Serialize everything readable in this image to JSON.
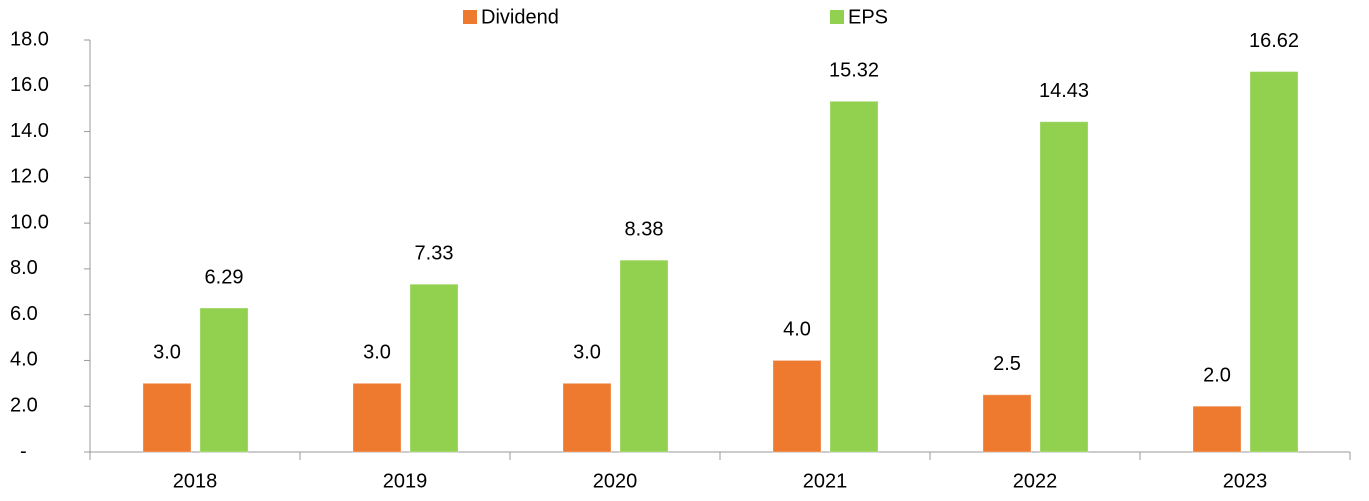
{
  "chart_data": {
    "type": "bar",
    "categories": [
      "2018",
      "2019",
      "2020",
      "2021",
      "2022",
      "2023"
    ],
    "series": [
      {
        "name": "Dividend",
        "color": "#ee7a30",
        "values": [
          3.0,
          3.0,
          3.0,
          4.0,
          2.5,
          2.0
        ],
        "value_labels": [
          "3.0",
          "3.0",
          "3.0",
          "4.0",
          "2.5",
          "2.0"
        ]
      },
      {
        "name": "EPS",
        "color": "#92d050",
        "values": [
          6.29,
          7.33,
          8.38,
          15.32,
          14.43,
          16.62
        ]
      }
    ],
    "ylim": [
      0,
      18
    ],
    "yticks": [
      {
        "value": 0,
        "label": "-"
      },
      {
        "value": 2,
        "label": "2.0"
      },
      {
        "value": 4,
        "label": "4.0"
      },
      {
        "value": 6,
        "label": "6.0"
      },
      {
        "value": 8,
        "label": "8.0"
      },
      {
        "value": 10,
        "label": "10.0"
      },
      {
        "value": 12,
        "label": "12.0"
      },
      {
        "value": 14,
        "label": "14.0"
      },
      {
        "value": 16,
        "label": "16.0"
      },
      {
        "value": 18,
        "label": "18.0"
      }
    ],
    "legend": "top"
  }
}
